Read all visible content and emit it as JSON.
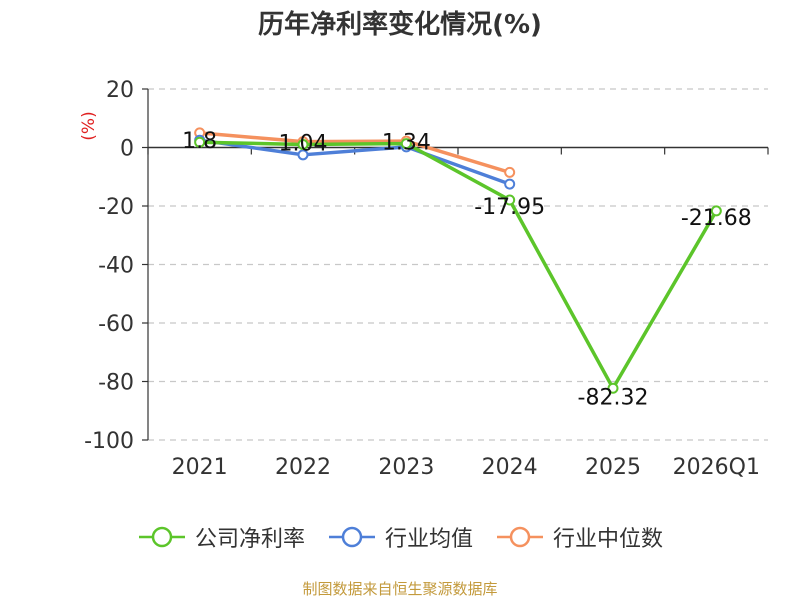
{
  "chart_data": {
    "type": "line",
    "title": "历年净利率变化情况(%)",
    "ylabel": "(%)",
    "categories": [
      "2021",
      "2022",
      "2023",
      "2024",
      "2025",
      "2026Q1"
    ],
    "ylim": [
      -100,
      20
    ],
    "yticks": [
      20,
      0,
      -20,
      -40,
      -60,
      -80,
      -100
    ],
    "grid": true,
    "legend_position": "bottom",
    "series": [
      {
        "name": "公司净利率",
        "color": "#5cc52a",
        "values": [
          1.8,
          1.04,
          1.34,
          -17.95,
          -82.32,
          -21.68
        ],
        "labels": [
          "1.8",
          "1.04",
          "1.34",
          "-17.95",
          "-82.32",
          "-21.68"
        ]
      },
      {
        "name": "行业均值",
        "color": "#4e7fd8",
        "values": [
          2.5,
          -2.5,
          0.2,
          -12.5,
          null,
          null
        ]
      },
      {
        "name": "行业中位数",
        "color": "#f5915e",
        "values": [
          5.0,
          2.0,
          2.2,
          -8.5,
          null,
          null
        ]
      }
    ]
  },
  "source_note": "制图数据来自恒生聚源数据库"
}
